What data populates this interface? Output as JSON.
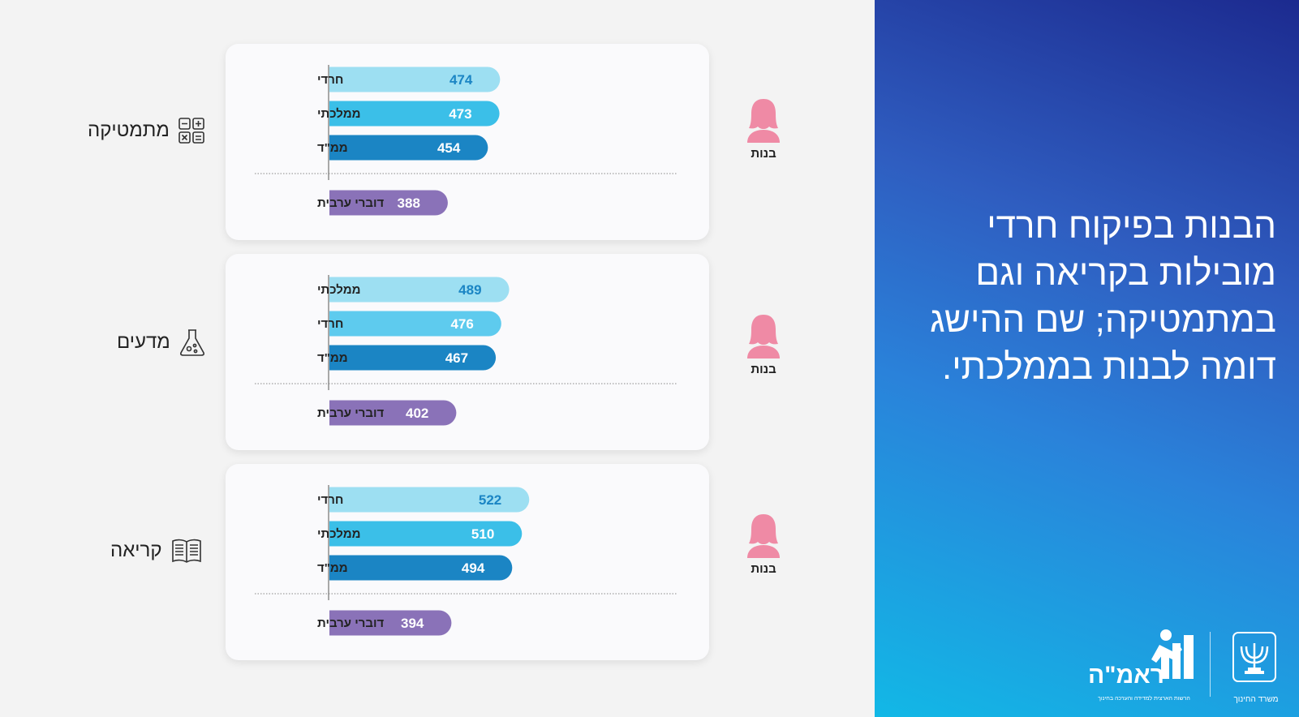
{
  "headline": "הבנות בפיקוח חרדי מובילות בקריאה וגם במתמטיקה; שם ההישג דומה לבנות בממלכתי.",
  "logos": {
    "rama_name": "ראמ\"ה",
    "rama_subtitle": "הרשות הארצית למדידה והערכה בחינוך",
    "ministry_name": "משרד החינוך"
  },
  "colors": {
    "haredi_light": "#9ddff2",
    "mamlachti_mid": "#3bbfe8",
    "mamad_dark": "#1b85c4",
    "arabic_purple": "#8a72b8",
    "girl_icon": "#ef8aa5",
    "panel_blue": "#2a82da"
  },
  "chart_data": [
    {
      "type": "bar",
      "subject": "מתמטיקה",
      "subject_icon": "calculator-icon",
      "group_label": "בנות",
      "categories": [
        "חרדי",
        "ממלכתי",
        "ממ\"ד",
        "דוברי ערבית"
      ],
      "values": [
        474,
        473,
        454,
        388
      ],
      "colors": [
        "#9ddff2",
        "#3bbfe8",
        "#1b85c4",
        "#8a72b8"
      ],
      "label_colors": [
        "#1b85c4",
        "#ffffff",
        "#ffffff",
        "#ffffff"
      ],
      "orientation": "horizontal"
    },
    {
      "type": "bar",
      "subject": "מדעים",
      "subject_icon": "flask-icon",
      "group_label": "בנות",
      "categories": [
        "ממלכתי",
        "חרדי",
        "ממ\"ד",
        "דוברי ערבית"
      ],
      "values": [
        489,
        476,
        467,
        402
      ],
      "colors": [
        "#9ddff2",
        "#5ecbee",
        "#1b85c4",
        "#8a72b8"
      ],
      "label_colors": [
        "#1b85c4",
        "#ffffff",
        "#ffffff",
        "#ffffff"
      ],
      "orientation": "horizontal"
    },
    {
      "type": "bar",
      "subject": "קריאה",
      "subject_icon": "book-icon",
      "group_label": "בנות",
      "categories": [
        "חרדי",
        "ממלכתי",
        "ממ\"ד",
        "דוברי ערבית"
      ],
      "values": [
        522,
        510,
        494,
        394
      ],
      "colors": [
        "#9ddff2",
        "#3bbfe8",
        "#1b85c4",
        "#8a72b8"
      ],
      "label_colors": [
        "#1b85c4",
        "#ffffff",
        "#ffffff",
        "#ffffff"
      ],
      "orientation": "horizontal"
    }
  ]
}
